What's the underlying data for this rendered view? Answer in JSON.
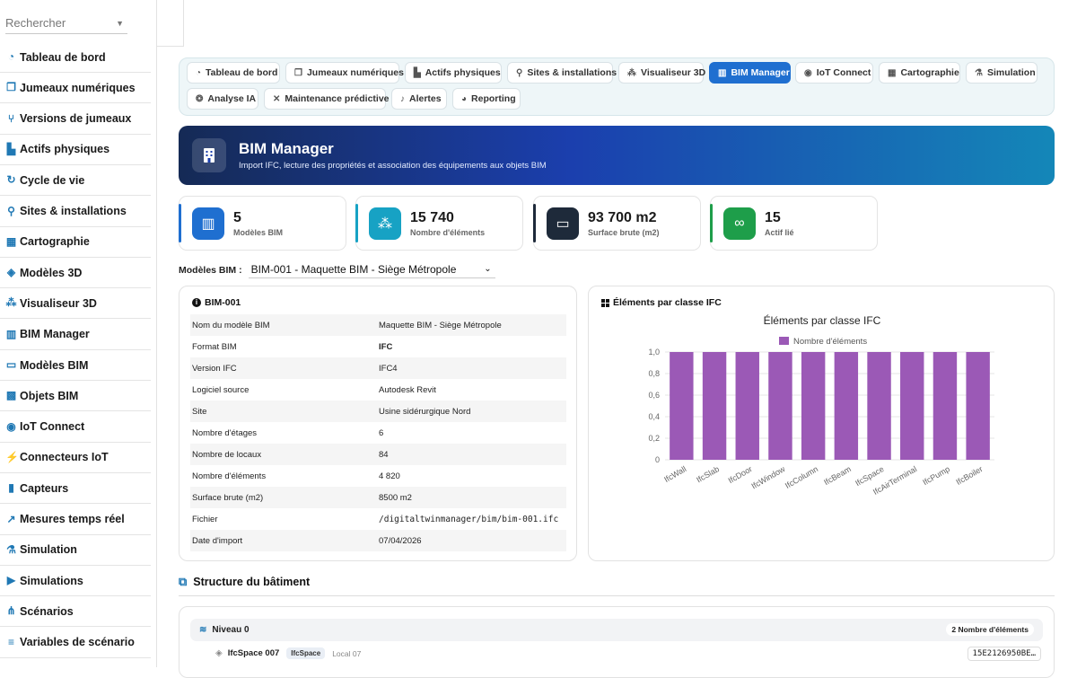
{
  "sidebar": {
    "search_placeholder": "Rechercher",
    "items": [
      {
        "label": "Tableau de bord",
        "icon": "gauge-icon"
      },
      {
        "label": "Jumeaux numériques",
        "icon": "copy-icon"
      },
      {
        "label": "Versions de jumeaux",
        "icon": "branch-icon"
      },
      {
        "label": "Actifs physiques",
        "icon": "chart-bar-icon"
      },
      {
        "label": "Cycle de vie",
        "icon": "cycle-icon"
      },
      {
        "label": "Sites & installations",
        "icon": "map-pin-icon"
      },
      {
        "label": "Cartographie",
        "icon": "map-icon"
      },
      {
        "label": "Modèles 3D",
        "icon": "cube-icon"
      },
      {
        "label": "Visualiseur 3D",
        "icon": "cubes-icon"
      },
      {
        "label": "BIM Manager",
        "icon": "building-icon"
      },
      {
        "label": "Modèles BIM",
        "icon": "ruler-icon"
      },
      {
        "label": "Objets BIM",
        "icon": "grid-icon"
      },
      {
        "label": "IoT Connect",
        "icon": "broadcast-icon"
      },
      {
        "label": "Connecteurs IoT",
        "icon": "plug-icon"
      },
      {
        "label": "Capteurs",
        "icon": "sensor-icon"
      },
      {
        "label": "Mesures temps réel",
        "icon": "line-chart-icon"
      },
      {
        "label": "Simulation",
        "icon": "flask-icon"
      },
      {
        "label": "Simulations",
        "icon": "play-icon"
      },
      {
        "label": "Scénarios",
        "icon": "nodes-icon"
      },
      {
        "label": "Variables de scénario",
        "icon": "sliders-icon"
      }
    ]
  },
  "nav": {
    "tabs": [
      {
        "label": "Tableau de bord",
        "icon": "gauge-icon",
        "active": false
      },
      {
        "label": "Jumeaux numériques",
        "icon": "copy-icon",
        "active": false
      },
      {
        "label": "Actifs physiques",
        "icon": "chart-bar-icon",
        "active": false
      },
      {
        "label": "Sites & installations",
        "icon": "map-pin-icon",
        "active": false
      },
      {
        "label": "Visualiseur 3D",
        "icon": "cubes-icon",
        "active": false
      },
      {
        "label": "BIM Manager",
        "icon": "building-icon",
        "active": true
      },
      {
        "label": "IoT Connect",
        "icon": "broadcast-icon",
        "active": false
      },
      {
        "label": "Cartographie",
        "icon": "map-icon",
        "active": false
      },
      {
        "label": "Simulation",
        "icon": "flask-icon",
        "active": false
      },
      {
        "label": "Analyse IA",
        "icon": "brain-icon",
        "active": false
      },
      {
        "label": "Maintenance prédictive",
        "icon": "tools-icon",
        "active": false
      },
      {
        "label": "Alertes",
        "icon": "bell-icon",
        "active": false
      },
      {
        "label": "Reporting",
        "icon": "pie-icon",
        "active": false
      }
    ]
  },
  "banner": {
    "title": "BIM Manager",
    "subtitle": "Import IFC, lecture des propriétés et association des équipements aux objets BIM"
  },
  "stats": [
    {
      "value": "5",
      "label": "Modèles BIM",
      "color": "#1f6fd0",
      "icon": "building-icon"
    },
    {
      "value": "15 740",
      "label": "Nombre d'éléments",
      "color": "#17a2c4",
      "icon": "cubes-icon"
    },
    {
      "value": "93 700 m2",
      "label": "Surface brute (m2)",
      "color": "#1e2a3a",
      "icon": "ruler-icon"
    },
    {
      "value": "15",
      "label": "Actif lié",
      "color": "#1e9e4a",
      "icon": "link-icon"
    }
  ],
  "model_select": {
    "label": "Modèles BIM :",
    "value": "BIM-001 - Maquette BIM - Siège Métropole"
  },
  "details": {
    "title": "BIM-001",
    "rows": [
      {
        "key": "Nom du modèle BIM",
        "value": "Maquette BIM - Siège Métropole"
      },
      {
        "key": "Format BIM",
        "value": "IFC"
      },
      {
        "key": "Version IFC",
        "value": "IFC4"
      },
      {
        "key": "Logiciel source",
        "value": "Autodesk Revit"
      },
      {
        "key": "Site",
        "value": "Usine sidérurgique Nord"
      },
      {
        "key": "Nombre d'étages",
        "value": "6"
      },
      {
        "key": "Nombre de locaux",
        "value": "84"
      },
      {
        "key": "Nombre d'éléments",
        "value": "4 820"
      },
      {
        "key": "Surface brute (m2)",
        "value": "8500 m2"
      },
      {
        "key": "Fichier",
        "value": "/digitaltwinmanager/bim/bim-001.ifc"
      },
      {
        "key": "Date d'import",
        "value": "07/04/2026"
      }
    ]
  },
  "chart_panel": {
    "title": "Éléments par classe IFC"
  },
  "chart_data": {
    "type": "bar",
    "title": "Éléments par classe IFC",
    "categories": [
      "IfcWall",
      "IfcSlab",
      "IfcDoor",
      "IfcWindow",
      "IfcColumn",
      "IfcBeam",
      "IfcSpace",
      "IfcAirTerminal",
      "IfcPump",
      "IfcBoiler"
    ],
    "series": [
      {
        "name": "Nombre d'éléments",
        "values": [
          1,
          1,
          1,
          1,
          1,
          1,
          1,
          1,
          1,
          1
        ]
      }
    ],
    "ylim": [
      0,
      1.0
    ],
    "yticks": [
      "0",
      "0,2",
      "0,4",
      "0,6",
      "0,8",
      "1,0"
    ],
    "bar_color": "#9b59b6",
    "legend_position": "top",
    "grid": true
  },
  "structure": {
    "title": "Structure du bâtiment",
    "level": {
      "label": "Niveau 0",
      "badge": "2 Nombre d'éléments"
    },
    "space": {
      "name": "IfcSpace 007",
      "tag": "IfcSpace",
      "local": "Local 07",
      "guid": "15E2126950BE…"
    }
  }
}
